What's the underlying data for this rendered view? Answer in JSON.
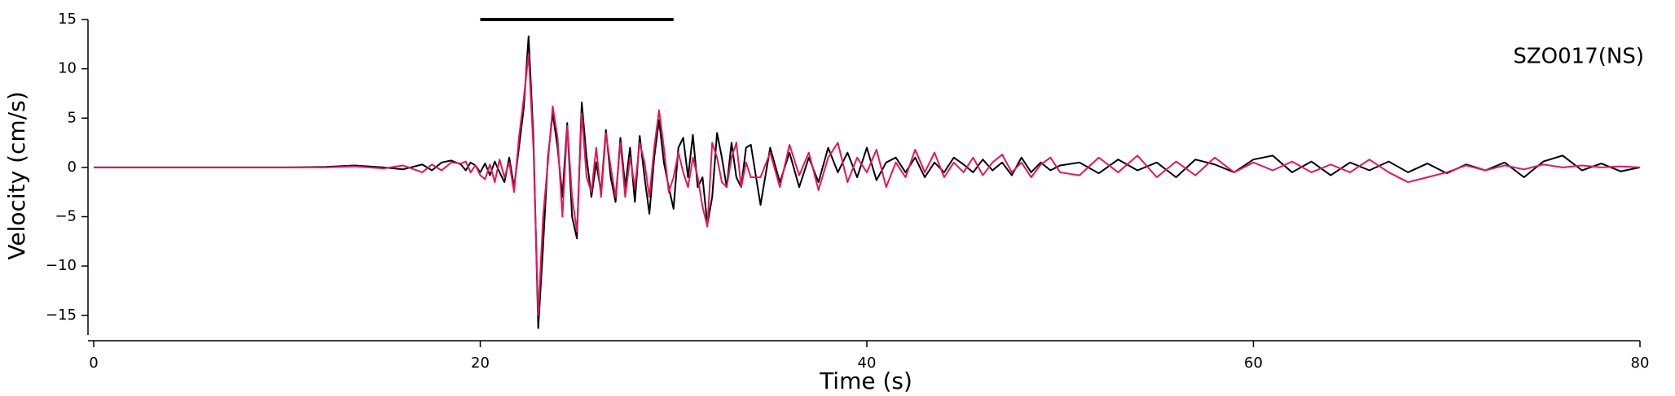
{
  "chart_data": {
    "type": "line",
    "station_label": "SZO017(NS)",
    "xlabel": "Time (s)",
    "ylabel": "Velocity (cm/s)",
    "window": [
      20,
      30
    ],
    "xlim": [
      0,
      80
    ],
    "xticks": [
      0,
      20,
      40,
      60,
      80
    ],
    "ylim": [
      -17,
      15
    ],
    "yticks": [
      {
        "value": -15,
        "label": "−15"
      },
      {
        "value": -10,
        "label": "−10"
      },
      {
        "value": -5,
        "label": "−5"
      },
      0,
      5,
      10,
      15
    ],
    "x": [
      0,
      8,
      10,
      12,
      13.5,
      15,
      16,
      17,
      17.5,
      18,
      18.5,
      19,
      19.25,
      19.5,
      19.75,
      20,
      20.25,
      20.5,
      20.75,
      21,
      21.25,
      21.5,
      21.75,
      22,
      22.25,
      22.5,
      22.75,
      23,
      23.25,
      23.5,
      23.75,
      24,
      24.25,
      24.5,
      24.75,
      25,
      25.25,
      25.5,
      25.75,
      26,
      26.25,
      26.5,
      26.75,
      27,
      27.25,
      27.5,
      27.75,
      28,
      28.25,
      28.5,
      28.75,
      29,
      29.25,
      29.5,
      29.75,
      30,
      30.25,
      30.5,
      30.75,
      31,
      31.25,
      31.5,
      31.75,
      32,
      32.25,
      32.5,
      32.75,
      33,
      33.25,
      33.5,
      33.75,
      34,
      34.5,
      35,
      35.5,
      36,
      36.5,
      37,
      37.5,
      38,
      38.5,
      39,
      39.5,
      40,
      40.5,
      41,
      41.5,
      42,
      42.5,
      43,
      43.5,
      44,
      44.5,
      45,
      45.5,
      46,
      46.5,
      47,
      47.5,
      48,
      48.5,
      49,
      49.5,
      50,
      51,
      52,
      53,
      54,
      55,
      56,
      57,
      58,
      59,
      60,
      61,
      62,
      63,
      64,
      65,
      66,
      67,
      68,
      69,
      70,
      71,
      72,
      73,
      74,
      75,
      76,
      77,
      78,
      79,
      80
    ],
    "series": [
      {
        "color": "#000000",
        "values": [
          0,
          0,
          0,
          0.05,
          0.2,
          0,
          -0.2,
          0.3,
          -0.3,
          0.5,
          0.7,
          0.3,
          -0.3,
          0.5,
          0.2,
          -0.5,
          0.4,
          -0.8,
          0.6,
          -0.5,
          -1.5,
          1.0,
          -2.0,
          2.0,
          6,
          13.3,
          3,
          -16.3,
          -8,
          1,
          5.5,
          2,
          -3,
          4.5,
          -5,
          -7.2,
          6.6,
          1,
          -3,
          0.5,
          -2.5,
          3.8,
          -1,
          -3.5,
          3,
          -2,
          2,
          -3.5,
          3.2,
          -1,
          -4.7,
          1,
          4.8,
          0.5,
          -2,
          -4.2,
          2,
          3,
          -1,
          3.3,
          -2,
          -1,
          -5.8,
          -3,
          3.5,
          1,
          -2,
          2.5,
          -1,
          -2,
          2,
          2.3,
          -3.8,
          2,
          -1.5,
          1.5,
          -2,
          1,
          -1.5,
          2,
          -0.5,
          1.5,
          -1,
          2,
          -1.3,
          0.5,
          1,
          -0.5,
          1,
          -1,
          0.5,
          -0.5,
          1,
          0.3,
          -0.5,
          0.8,
          -0.3,
          0.5,
          -0.8,
          1,
          -0.5,
          0.5,
          -0.3,
          0.2,
          0.5,
          -0.6,
          0.8,
          -0.3,
          0.5,
          -1,
          0.8,
          0.3,
          -0.5,
          0.8,
          1.2,
          -0.5,
          0.6,
          -0.8,
          0.5,
          -0.3,
          0.6,
          -0.5,
          0.4,
          -0.6,
          0.3,
          -0.3,
          0.5,
          -1,
          0.6,
          1.2,
          -0.3,
          0.4,
          -0.4,
          0
        ]
      },
      {
        "color": "#e8145a",
        "values": [
          0,
          0,
          0,
          0,
          0.1,
          -0.1,
          0.2,
          -0.5,
          0.3,
          -0.3,
          0.5,
          0.4,
          0.6,
          -0.5,
          0.2,
          -0.8,
          -1.2,
          0.3,
          -1.5,
          0.8,
          -1.0,
          0.5,
          -2.5,
          3.0,
          7,
          11.5,
          2,
          -15,
          -5,
          0.5,
          6.2,
          3,
          -5,
          4.2,
          -3,
          -6.5,
          5.5,
          -1,
          -2.5,
          2,
          -3,
          3.5,
          0,
          -3,
          2.5,
          -3,
          1,
          -2,
          2.5,
          0.5,
          -3,
          2,
          5.8,
          2,
          -2.5,
          -1,
          1.5,
          -0.5,
          -2,
          1,
          -1,
          -4,
          -6,
          2.5,
          1,
          -1.5,
          -2,
          1,
          2.5,
          -2,
          0.5,
          -1,
          -1,
          1.5,
          -2,
          2.3,
          -0.8,
          1.5,
          -2.3,
          1,
          2.5,
          -1.5,
          1,
          -0.5,
          1.8,
          -2,
          0.5,
          -1,
          1.8,
          -0.5,
          1.5,
          -1,
          0.5,
          -0.5,
          1,
          -0.8,
          0.5,
          1.3,
          -0.5,
          0.5,
          -1,
          0.3,
          1,
          -0.5,
          -0.8,
          1,
          -0.5,
          1.2,
          -1,
          0.6,
          -0.8,
          1,
          -0.5,
          0.5,
          -0.3,
          0.6,
          -0.5,
          0.3,
          -0.5,
          0.8,
          -0.5,
          -1.5,
          -1,
          -0.5,
          0.2,
          -0.3,
          0.2,
          -0.2,
          0.3,
          0,
          0.2,
          0,
          0.1,
          0
        ]
      }
    ]
  }
}
